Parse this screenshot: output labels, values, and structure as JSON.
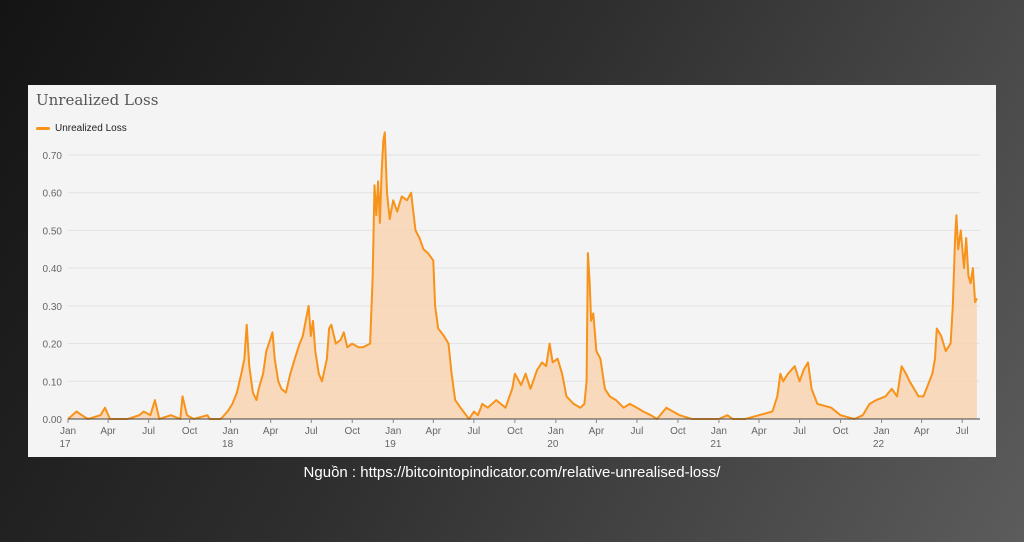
{
  "caption": "Nguồn : https://bitcointopindicator.com/relative-unrealised-loss/",
  "colors": {
    "line": "#f7931a",
    "fill": "#f9d3b2",
    "grid": "#e2e2e2",
    "axis_text": "#666666"
  },
  "chart_data": {
    "type": "area",
    "title": "Unrealized Loss",
    "legend": [
      "Unrealized Loss"
    ],
    "legend_position": "top-left",
    "grid": true,
    "ylim": [
      0,
      0.7
    ],
    "yticks": [
      "0.00",
      "0.10",
      "0.20",
      "0.30",
      "0.40",
      "0.50",
      "0.60",
      "0.70"
    ],
    "xlim": [
      "2017-01-01",
      "2022-08-10"
    ],
    "xticks": [
      {
        "date": "2017-01-01",
        "label": "Jan",
        "sub": "17"
      },
      {
        "date": "2017-04-01",
        "label": "Apr",
        "sub": ""
      },
      {
        "date": "2017-07-01",
        "label": "Jul",
        "sub": ""
      },
      {
        "date": "2017-10-01",
        "label": "Oct",
        "sub": ""
      },
      {
        "date": "2018-01-01",
        "label": "Jan",
        "sub": "18"
      },
      {
        "date": "2018-04-01",
        "label": "Apr",
        "sub": ""
      },
      {
        "date": "2018-07-01",
        "label": "Jul",
        "sub": ""
      },
      {
        "date": "2018-10-01",
        "label": "Oct",
        "sub": ""
      },
      {
        "date": "2019-01-01",
        "label": "Jan",
        "sub": "19"
      },
      {
        "date": "2019-04-01",
        "label": "Apr",
        "sub": ""
      },
      {
        "date": "2019-07-01",
        "label": "Jul",
        "sub": ""
      },
      {
        "date": "2019-10-01",
        "label": "Oct",
        "sub": ""
      },
      {
        "date": "2020-01-01",
        "label": "Jan",
        "sub": "20"
      },
      {
        "date": "2020-04-01",
        "label": "Apr",
        "sub": ""
      },
      {
        "date": "2020-07-01",
        "label": "Jul",
        "sub": ""
      },
      {
        "date": "2020-10-01",
        "label": "Oct",
        "sub": ""
      },
      {
        "date": "2021-01-01",
        "label": "Jan",
        "sub": "21"
      },
      {
        "date": "2021-04-01",
        "label": "Apr",
        "sub": ""
      },
      {
        "date": "2021-07-01",
        "label": "Jul",
        "sub": ""
      },
      {
        "date": "2021-10-01",
        "label": "Oct",
        "sub": ""
      },
      {
        "date": "2022-01-01",
        "label": "Jan",
        "sub": "22"
      },
      {
        "date": "2022-04-01",
        "label": "Apr",
        "sub": ""
      },
      {
        "date": "2022-07-01",
        "label": "Jul",
        "sub": ""
      }
    ],
    "series": [
      {
        "name": "Unrealized Loss",
        "points": [
          [
            "2017-01-01",
            0.0
          ],
          [
            "2017-01-20",
            0.02
          ],
          [
            "2017-02-01",
            0.01
          ],
          [
            "2017-02-15",
            0.0
          ],
          [
            "2017-03-15",
            0.01
          ],
          [
            "2017-03-25",
            0.03
          ],
          [
            "2017-04-05",
            0.0
          ],
          [
            "2017-05-15",
            0.0
          ],
          [
            "2017-06-10",
            0.01
          ],
          [
            "2017-06-20",
            0.02
          ],
          [
            "2017-07-05",
            0.01
          ],
          [
            "2017-07-15",
            0.05
          ],
          [
            "2017-07-25",
            0.0
          ],
          [
            "2017-08-20",
            0.01
          ],
          [
            "2017-09-10",
            0.0
          ],
          [
            "2017-09-15",
            0.06
          ],
          [
            "2017-09-25",
            0.01
          ],
          [
            "2017-10-10",
            0.0
          ],
          [
            "2017-11-10",
            0.01
          ],
          [
            "2017-11-15",
            0.0
          ],
          [
            "2017-12-10",
            0.0
          ],
          [
            "2017-12-25",
            0.02
          ],
          [
            "2018-01-05",
            0.04
          ],
          [
            "2018-01-15",
            0.07
          ],
          [
            "2018-01-25",
            0.12
          ],
          [
            "2018-02-01",
            0.16
          ],
          [
            "2018-02-06",
            0.25
          ],
          [
            "2018-02-12",
            0.14
          ],
          [
            "2018-02-20",
            0.07
          ],
          [
            "2018-02-28",
            0.05
          ],
          [
            "2018-03-05",
            0.08
          ],
          [
            "2018-03-15",
            0.12
          ],
          [
            "2018-03-22",
            0.18
          ],
          [
            "2018-03-28",
            0.2
          ],
          [
            "2018-04-05",
            0.23
          ],
          [
            "2018-04-10",
            0.16
          ],
          [
            "2018-04-18",
            0.1
          ],
          [
            "2018-04-25",
            0.08
          ],
          [
            "2018-05-05",
            0.07
          ],
          [
            "2018-05-15",
            0.12
          ],
          [
            "2018-05-25",
            0.16
          ],
          [
            "2018-06-05",
            0.2
          ],
          [
            "2018-06-12",
            0.22
          ],
          [
            "2018-06-20",
            0.27
          ],
          [
            "2018-06-25",
            0.3
          ],
          [
            "2018-06-30",
            0.22
          ],
          [
            "2018-07-05",
            0.26
          ],
          [
            "2018-07-10",
            0.18
          ],
          [
            "2018-07-18",
            0.12
          ],
          [
            "2018-07-25",
            0.1
          ],
          [
            "2018-08-05",
            0.16
          ],
          [
            "2018-08-10",
            0.24
          ],
          [
            "2018-08-15",
            0.25
          ],
          [
            "2018-08-25",
            0.2
          ],
          [
            "2018-09-05",
            0.21
          ],
          [
            "2018-09-12",
            0.23
          ],
          [
            "2018-09-20",
            0.19
          ],
          [
            "2018-10-01",
            0.2
          ],
          [
            "2018-10-15",
            0.19
          ],
          [
            "2018-10-25",
            0.19
          ],
          [
            "2018-11-10",
            0.2
          ],
          [
            "2018-11-16",
            0.38
          ],
          [
            "2018-11-20",
            0.62
          ],
          [
            "2018-11-24",
            0.54
          ],
          [
            "2018-11-28",
            0.63
          ],
          [
            "2018-12-02",
            0.52
          ],
          [
            "2018-12-06",
            0.66
          ],
          [
            "2018-12-10",
            0.74
          ],
          [
            "2018-12-13",
            0.76
          ],
          [
            "2018-12-18",
            0.6
          ],
          [
            "2018-12-24",
            0.53
          ],
          [
            "2019-01-01",
            0.58
          ],
          [
            "2019-01-10",
            0.55
          ],
          [
            "2019-01-20",
            0.59
          ],
          [
            "2019-02-01",
            0.58
          ],
          [
            "2019-02-10",
            0.6
          ],
          [
            "2019-02-20",
            0.5
          ],
          [
            "2019-03-01",
            0.48
          ],
          [
            "2019-03-10",
            0.45
          ],
          [
            "2019-03-20",
            0.44
          ],
          [
            "2019-04-01",
            0.42
          ],
          [
            "2019-04-05",
            0.3
          ],
          [
            "2019-04-12",
            0.24
          ],
          [
            "2019-04-25",
            0.22
          ],
          [
            "2019-05-05",
            0.2
          ],
          [
            "2019-05-12",
            0.12
          ],
          [
            "2019-05-20",
            0.05
          ],
          [
            "2019-06-01",
            0.03
          ],
          [
            "2019-06-20",
            0.0
          ],
          [
            "2019-07-01",
            0.02
          ],
          [
            "2019-07-10",
            0.01
          ],
          [
            "2019-07-20",
            0.04
          ],
          [
            "2019-08-01",
            0.03
          ],
          [
            "2019-08-20",
            0.05
          ],
          [
            "2019-09-10",
            0.03
          ],
          [
            "2019-09-25",
            0.08
          ],
          [
            "2019-10-01",
            0.12
          ],
          [
            "2019-10-15",
            0.09
          ],
          [
            "2019-10-25",
            0.12
          ],
          [
            "2019-11-05",
            0.08
          ],
          [
            "2019-11-20",
            0.13
          ],
          [
            "2019-12-01",
            0.15
          ],
          [
            "2019-12-10",
            0.14
          ],
          [
            "2019-12-18",
            0.2
          ],
          [
            "2019-12-25",
            0.15
          ],
          [
            "2020-01-05",
            0.16
          ],
          [
            "2020-01-15",
            0.12
          ],
          [
            "2020-01-25",
            0.06
          ],
          [
            "2020-02-10",
            0.04
          ],
          [
            "2020-02-25",
            0.03
          ],
          [
            "2020-03-05",
            0.04
          ],
          [
            "2020-03-10",
            0.1
          ],
          [
            "2020-03-13",
            0.44
          ],
          [
            "2020-03-17",
            0.36
          ],
          [
            "2020-03-20",
            0.26
          ],
          [
            "2020-03-25",
            0.28
          ],
          [
            "2020-04-01",
            0.18
          ],
          [
            "2020-04-10",
            0.16
          ],
          [
            "2020-04-20",
            0.08
          ],
          [
            "2020-05-01",
            0.06
          ],
          [
            "2020-05-15",
            0.05
          ],
          [
            "2020-06-01",
            0.03
          ],
          [
            "2020-06-15",
            0.04
          ],
          [
            "2020-07-01",
            0.03
          ],
          [
            "2020-07-15",
            0.02
          ],
          [
            "2020-08-01",
            0.01
          ],
          [
            "2020-08-15",
            0.0
          ],
          [
            "2020-09-05",
            0.03
          ],
          [
            "2020-09-20",
            0.02
          ],
          [
            "2020-10-05",
            0.01
          ],
          [
            "2020-11-01",
            0.0
          ],
          [
            "2020-12-01",
            0.0
          ],
          [
            "2021-01-01",
            0.0
          ],
          [
            "2021-01-20",
            0.01
          ],
          [
            "2021-02-01",
            0.0
          ],
          [
            "2021-03-01",
            0.0
          ],
          [
            "2021-04-01",
            0.01
          ],
          [
            "2021-05-01",
            0.02
          ],
          [
            "2021-05-12",
            0.06
          ],
          [
            "2021-05-19",
            0.12
          ],
          [
            "2021-05-25",
            0.1
          ],
          [
            "2021-06-05",
            0.12
          ],
          [
            "2021-06-20",
            0.14
          ],
          [
            "2021-07-01",
            0.1
          ],
          [
            "2021-07-10",
            0.13
          ],
          [
            "2021-07-20",
            0.15
          ],
          [
            "2021-07-28",
            0.08
          ],
          [
            "2021-08-10",
            0.04
          ],
          [
            "2021-09-10",
            0.03
          ],
          [
            "2021-10-01",
            0.01
          ],
          [
            "2021-11-01",
            0.0
          ],
          [
            "2021-11-20",
            0.01
          ],
          [
            "2021-12-05",
            0.04
          ],
          [
            "2021-12-20",
            0.05
          ],
          [
            "2022-01-10",
            0.06
          ],
          [
            "2022-01-24",
            0.08
          ],
          [
            "2022-02-05",
            0.06
          ],
          [
            "2022-02-15",
            0.14
          ],
          [
            "2022-02-25",
            0.12
          ],
          [
            "2022-03-05",
            0.1
          ],
          [
            "2022-03-15",
            0.08
          ],
          [
            "2022-03-25",
            0.06
          ],
          [
            "2022-04-05",
            0.06
          ],
          [
            "2022-04-15",
            0.09
          ],
          [
            "2022-04-25",
            0.12
          ],
          [
            "2022-05-01",
            0.16
          ],
          [
            "2022-05-05",
            0.24
          ],
          [
            "2022-05-15",
            0.22
          ],
          [
            "2022-05-25",
            0.18
          ],
          [
            "2022-06-05",
            0.2
          ],
          [
            "2022-06-10",
            0.3
          ],
          [
            "2022-06-15",
            0.48
          ],
          [
            "2022-06-18",
            0.54
          ],
          [
            "2022-06-22",
            0.45
          ],
          [
            "2022-06-28",
            0.5
          ],
          [
            "2022-07-05",
            0.4
          ],
          [
            "2022-07-10",
            0.48
          ],
          [
            "2022-07-15",
            0.38
          ],
          [
            "2022-07-20",
            0.36
          ],
          [
            "2022-07-25",
            0.4
          ],
          [
            "2022-07-30",
            0.31
          ],
          [
            "2022-08-03",
            0.32
          ]
        ]
      }
    ]
  }
}
